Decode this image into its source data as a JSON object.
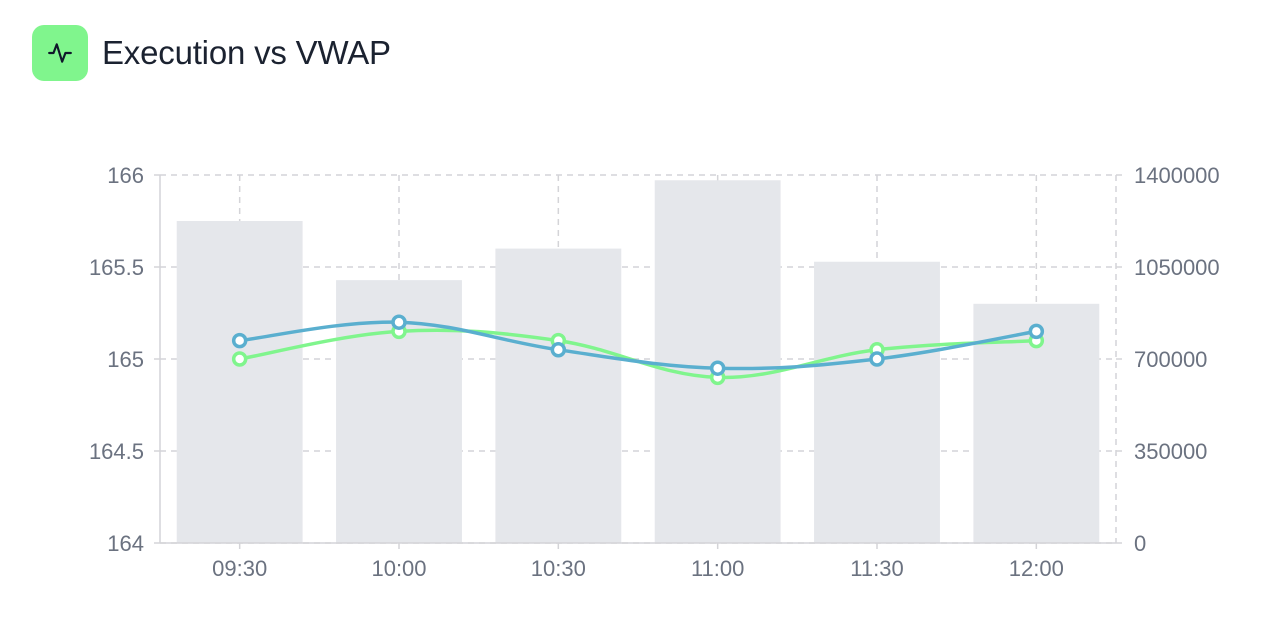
{
  "header": {
    "title": "Execution vs VWAP",
    "icon": "activity-pulse-icon",
    "icon_bg": "#80f58d"
  },
  "chart_data": {
    "type": "bar+line",
    "title": "Execution vs VWAP",
    "categories": [
      "09:30",
      "10:00",
      "10:30",
      "11:00",
      "11:30",
      "12:00"
    ],
    "bars": {
      "name": "",
      "axis": "right",
      "color": "#e5e7eb",
      "values": [
        1225000,
        1000000,
        1120000,
        1380000,
        1070000,
        910000
      ]
    },
    "series": [
      {
        "name": "",
        "axis": "left",
        "color": "#5aafcf",
        "values": [
          165.1,
          165.2,
          165.05,
          164.95,
          165.0,
          165.15
        ]
      },
      {
        "name": "",
        "axis": "left",
        "color": "#80f58d",
        "values": [
          165.0,
          165.15,
          165.1,
          164.9,
          165.05,
          165.1
        ]
      }
    ],
    "y_left": {
      "min": 164,
      "max": 166,
      "ticks": [
        164,
        164.5,
        165,
        165.5,
        166
      ],
      "tick_labels": [
        "164",
        "164.5",
        "165",
        "165.5",
        "166"
      ]
    },
    "y_right": {
      "min": 0,
      "max": 1400000,
      "ticks": [
        0,
        350000,
        700000,
        1050000,
        1400000
      ],
      "tick_labels": [
        "0",
        "350000",
        "700000",
        "1050000",
        "1400000"
      ]
    },
    "grid": true,
    "legend": "none"
  }
}
